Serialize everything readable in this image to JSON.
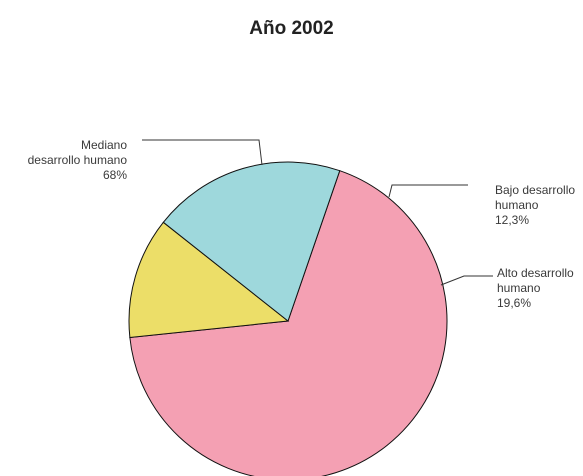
{
  "chart_data": {
    "type": "pie",
    "title": "Año 2002",
    "slices": [
      {
        "label_lines": [
          "Mediano",
          "desarrollo humano"
        ],
        "value": 68,
        "value_label": "68%",
        "color": "#f4a0b3"
      },
      {
        "label_lines": [
          "Bajo desarrollo",
          "humano"
        ],
        "value": 12.3,
        "value_label": "12,3%",
        "color": "#ecde68"
      },
      {
        "label_lines": [
          "Alto desarrollo",
          "humano"
        ],
        "value": 19.6,
        "value_label": "19,6%",
        "color": "#9ed8dc"
      }
    ]
  }
}
